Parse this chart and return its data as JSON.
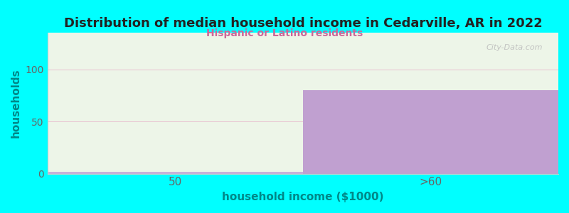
{
  "title": "Distribution of median household income in Cedarville, AR in 2022",
  "subtitle": "Hispanic or Latino residents",
  "xlabel": "household income ($1000)",
  "ylabel": "households",
  "categories": [
    "50",
    ">60"
  ],
  "values": [
    2,
    80
  ],
  "bar_colors": [
    "#d4eeac",
    "#c0a0d0"
  ],
  "ylim": [
    0,
    135
  ],
  "yticks": [
    0,
    50,
    100
  ],
  "background_color": "#00ffff",
  "plot_bg_top_left": "#e8f5e0",
  "plot_bg_top_right": "#f0f0f8",
  "plot_bg_bottom": "#f0f0f0",
  "title_color": "#222222",
  "subtitle_color": "#cc6699",
  "axis_label_color": "#008888",
  "tick_color": "#666666",
  "grid_color": "#e8c0d0",
  "watermark_text": "City-Data.com",
  "watermark_color": "#bbbbbb"
}
